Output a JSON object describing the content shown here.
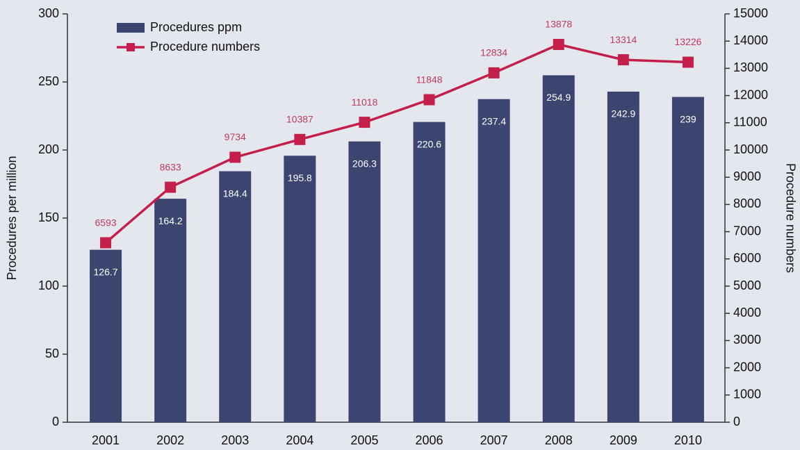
{
  "chart_data": {
    "type": "bar",
    "categories": [
      "2001",
      "2002",
      "2003",
      "2004",
      "2005",
      "2006",
      "2007",
      "2008",
      "2009",
      "2010"
    ],
    "series": [
      {
        "name": "Procedures ppm",
        "type": "bar",
        "color": "#3b4570",
        "values": [
          126.7,
          164.2,
          184.4,
          195.8,
          206.3,
          220.6,
          237.4,
          254.9,
          242.9,
          239
        ]
      },
      {
        "name": "Procedure numbers",
        "type": "line",
        "axis": "y2",
        "color": "#c41e4a",
        "values": [
          6593,
          8633,
          9734,
          10387,
          11018,
          11848,
          12834,
          13878,
          13314,
          13226
        ]
      }
    ],
    "ylabel": "Procedures per million",
    "y2label": "Procedure numbers",
    "ylim": [
      0,
      300
    ],
    "yticks": [
      0,
      50,
      100,
      150,
      200,
      250,
      300
    ],
    "y2lim": [
      0,
      15000
    ],
    "y2ticks": [
      0,
      1000,
      2000,
      3000,
      4000,
      5000,
      6000,
      7000,
      8000,
      9000,
      10000,
      11000,
      12000,
      13000,
      14000,
      15000
    ],
    "legend": "top-left"
  }
}
